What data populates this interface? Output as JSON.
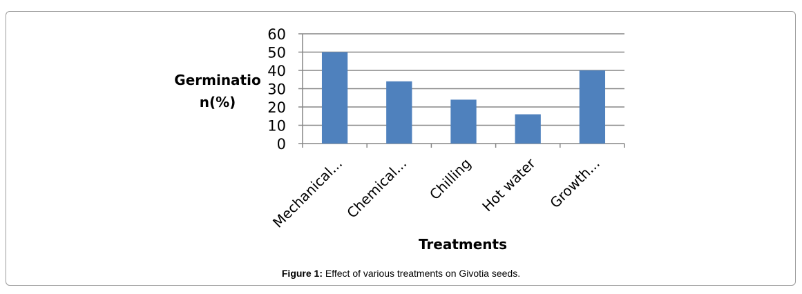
{
  "chart_data": {
    "type": "bar",
    "categories": [
      "Mechanical...",
      "Chemical...",
      "Chilling",
      "Hot water",
      "Growth..."
    ],
    "values": [
      50,
      34,
      24,
      16,
      40
    ],
    "ylabel_lines": [
      "Germinatio",
      "n(%)"
    ],
    "xlabel": "Treatments",
    "ylim": [
      0,
      60
    ],
    "yticks": [
      0,
      10,
      20,
      30,
      40,
      50,
      60
    ],
    "grid": true,
    "bar_color": "#4f81bd"
  },
  "caption": {
    "label": "Figure 1:",
    "text": " Effect of various treatments on Givotia seeds."
  }
}
